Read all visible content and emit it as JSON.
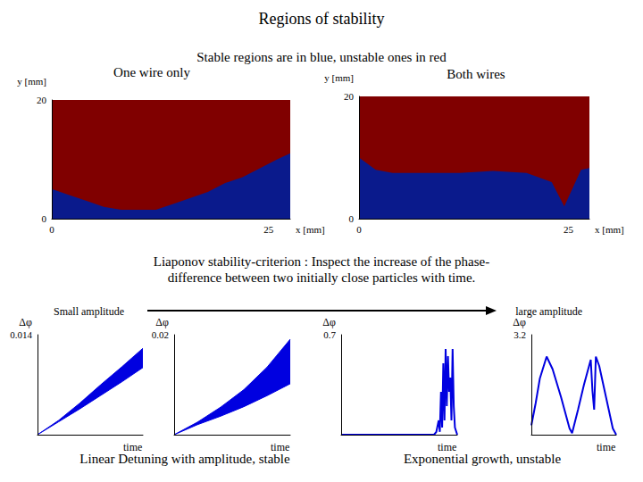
{
  "title": "Regions of stability",
  "subtitle": "Stable regions are in blue, unstable ones in red",
  "annotation": "Liaponov stability-criterion : Inspect the increase of the phase-\ndifference between two initially close particles with time.",
  "amplitude_labels": [
    "Small amplitude",
    "large amplitude"
  ],
  "captions": [
    "Linear Detuning with amplitude, stable",
    "Exponential growth, unstable"
  ],
  "chart_data": [
    {
      "type": "area",
      "title": "One wire only",
      "xlabel": "x [mm]",
      "ylabel": "y [mm]",
      "x": [
        0,
        2,
        4,
        6,
        8,
        10,
        12,
        14,
        16,
        18,
        20,
        22,
        24,
        26,
        27.5
      ],
      "values": [
        5,
        4,
        3,
        2,
        1.5,
        1.5,
        1.5,
        2.5,
        3.5,
        4.5,
        6,
        7,
        8.5,
        10,
        11
      ],
      "colors": [
        "#0a1a8c",
        "#800000"
      ],
      "xlim": [
        0,
        27.5
      ],
      "ylim": [
        0,
        20
      ],
      "xticks": [
        0,
        25
      ],
      "yticks": [
        0,
        20
      ],
      "grid": false
    },
    {
      "type": "area",
      "title": "Both wires",
      "xlabel": "x [mm]",
      "ylabel": "y [mm]",
      "x": [
        0,
        2,
        4,
        8,
        12,
        16,
        20,
        23,
        24.5,
        25.5,
        26.5,
        27.5
      ],
      "values": [
        10,
        8,
        7.5,
        7.5,
        7.5,
        7.8,
        7.5,
        6,
        2,
        5,
        8,
        8.3
      ],
      "colors": [
        "#0a1a8c",
        "#800000"
      ],
      "xlim": [
        0,
        27.5
      ],
      "ylim": [
        0,
        20
      ],
      "xticks": [
        0,
        25
      ],
      "yticks": [
        0,
        20
      ],
      "grid": false
    },
    {
      "type": "band",
      "xlabel": "time",
      "ylabel": "Δφ",
      "x": [
        0,
        20,
        40,
        60,
        80,
        100
      ],
      "lower": [
        0,
        0.0018,
        0.0036,
        0.0055,
        0.0074,
        0.0094
      ],
      "upper": [
        0,
        0.002,
        0.0044,
        0.007,
        0.0095,
        0.0121
      ],
      "color": "#0000e0",
      "xlim": [
        0,
        100
      ],
      "ylim": [
        0,
        0.014
      ],
      "xticks": [],
      "yticks": [
        0.014
      ],
      "tick_labels": "y",
      "grid": false
    },
    {
      "type": "band",
      "xlabel": "time",
      "ylabel": "Δφ",
      "x": [
        0,
        20,
        40,
        60,
        80,
        100
      ],
      "lower": [
        0,
        0.002,
        0.0037,
        0.0056,
        0.0078,
        0.0102
      ],
      "upper": [
        0,
        0.0025,
        0.0055,
        0.009,
        0.0135,
        0.0191
      ],
      "color": "#0000e0",
      "xlim": [
        0,
        100
      ],
      "ylim": [
        0,
        0.02
      ],
      "xticks": [],
      "yticks": [
        0.02
      ],
      "tick_labels": "y",
      "grid": false
    },
    {
      "type": "line",
      "xlabel": "time",
      "ylabel": "Δφ",
      "x": [
        0,
        80,
        82,
        84,
        85,
        86,
        87,
        88,
        89,
        90,
        91,
        92,
        93,
        94,
        95,
        96,
        97,
        98,
        100
      ],
      "values": [
        0,
        0,
        0.02,
        0.1,
        0.02,
        0.3,
        0.05,
        0.5,
        0.1,
        0.6,
        0.2,
        0.55,
        0.3,
        0.4,
        0.1,
        0.6,
        0.2,
        0.05,
        0
      ],
      "color": "#0000e0",
      "xlim": [
        0,
        100
      ],
      "ylim": [
        0,
        0.7
      ],
      "xticks": [],
      "yticks": [
        0.7
      ],
      "tick_labels": "y",
      "grid": false
    },
    {
      "type": "line",
      "xlabel": "time",
      "ylabel": "Δφ",
      "x": [
        0,
        5,
        10,
        18,
        25,
        35,
        45,
        48,
        55,
        62,
        70,
        72,
        74,
        76,
        80,
        88,
        96,
        100
      ],
      "values": [
        0.3,
        1,
        1.8,
        2.5,
        2.1,
        1.2,
        0.2,
        0.05,
        0.8,
        1.6,
        2.4,
        1.4,
        0.8,
        2.5,
        2.2,
        1.2,
        0.2,
        0
      ],
      "color": "#0000e0",
      "xlim": [
        0,
        100
      ],
      "ylim": [
        0,
        3.2
      ],
      "xticks": [],
      "yticks": [
        3.2
      ],
      "tick_labels": "y",
      "grid": false
    }
  ]
}
